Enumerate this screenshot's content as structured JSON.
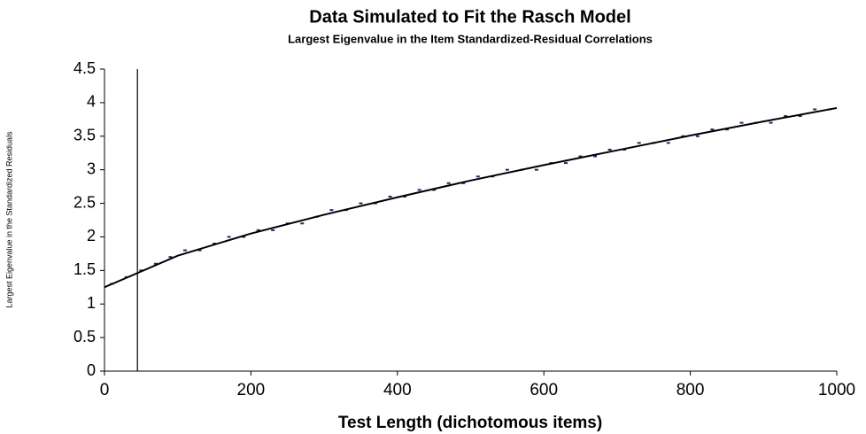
{
  "chart_data": {
    "type": "scatter",
    "title": "Data Simulated to Fit the Rasch Model",
    "subtitle": "Largest Eigenvalue in the Item Standardized-Residual Correlations",
    "x_label": "Test Length (dichotomous items)",
    "y_label": "Largest Eigenvalue in the Standardized Residuals",
    "xlim": [
      0,
      1000
    ],
    "ylim": [
      0,
      4.5
    ],
    "xticks": [
      0,
      200,
      400,
      600,
      800,
      1000
    ],
    "yticks": [
      0,
      0.5,
      1,
      1.5,
      2,
      2.5,
      3,
      3.5,
      4,
      4.5
    ],
    "reference_x": 45,
    "series": [
      {
        "color": "#1f2a6b",
        "mode": "points",
        "x": [
          10,
          30,
          50,
          70,
          90,
          110,
          130,
          150,
          170,
          190,
          210,
          230,
          250,
          270,
          290,
          310,
          330,
          350,
          370,
          390,
          410,
          430,
          450,
          470,
          490,
          510,
          530,
          550,
          570,
          590,
          610,
          630,
          650,
          670,
          690,
          710,
          730,
          750,
          770,
          790,
          810,
          830,
          850,
          870,
          890,
          910,
          930,
          950,
          970,
          990
        ],
        "values": [
          1.3,
          1.4,
          1.5,
          1.6,
          1.7,
          1.8,
          1.8,
          1.9,
          2.0,
          2.0,
          2.1,
          2.1,
          2.2,
          2.2,
          2.3,
          2.4,
          2.4,
          2.5,
          2.5,
          2.6,
          2.6,
          2.7,
          2.7,
          2.8,
          2.8,
          2.9,
          2.9,
          3.0,
          3.0,
          3.0,
          3.1,
          3.1,
          3.2,
          3.2,
          3.3,
          3.3,
          3.4,
          3.4,
          3.4,
          3.5,
          3.5,
          3.6,
          3.6,
          3.7,
          3.7,
          3.7,
          3.8,
          3.8,
          3.9,
          3.9
        ]
      },
      {
        "color": "#000000",
        "mode": "line",
        "x": [
          0,
          100,
          200,
          300,
          400,
          500,
          600,
          700,
          800,
          900,
          1000
        ],
        "values": [
          1.25,
          1.72,
          2.05,
          2.33,
          2.59,
          2.84,
          3.07,
          3.29,
          3.51,
          3.72,
          3.92
        ]
      }
    ]
  }
}
